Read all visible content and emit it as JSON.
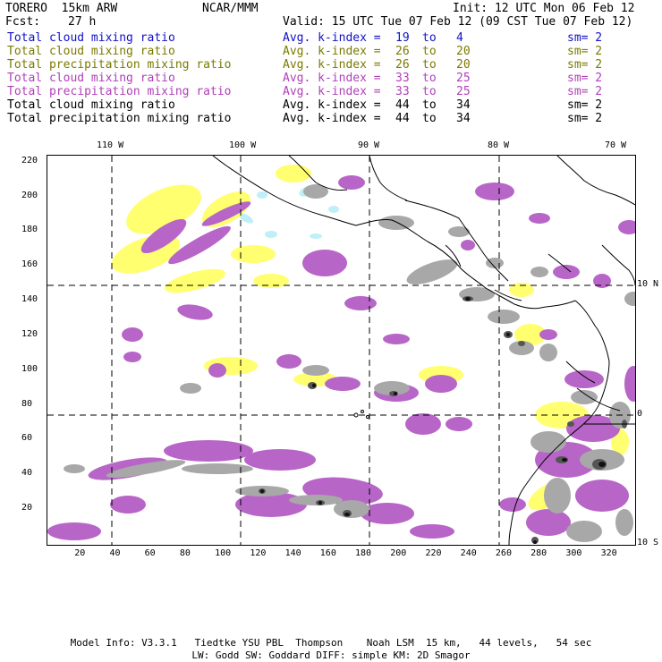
{
  "header": {
    "model_name": "TORERO  15km ARW",
    "center": "NCAR/MMM",
    "init": "Init: 12 UTC Mon 06 Feb 12",
    "fcst_label": "Fcst:",
    "fcst_value": "27 h",
    "valid": "Valid: 15 UTC Tue 07 Feb 12 (09 CST Tue 07 Feb 12)"
  },
  "legend": [
    {
      "field": "Total cloud mixing ratio",
      "index_label": "Avg. k-index =",
      "from": "19",
      "to_word": "to",
      "to": "4",
      "sm": "sm= 2",
      "color": "#1010c8"
    },
    {
      "field": "Total cloud mixing ratio",
      "index_label": "Avg. k-index =",
      "from": "26",
      "to_word": "to",
      "to": "20",
      "sm": "sm= 2",
      "color": "#7a7a00"
    },
    {
      "field": "Total precipitation mixing ratio",
      "index_label": "Avg. k-index =",
      "from": "26",
      "to_word": "to",
      "to": "20",
      "sm": "sm= 2",
      "color": "#7a7a00"
    },
    {
      "field": "Total cloud mixing ratio",
      "index_label": "Avg. k-index =",
      "from": "33",
      "to_word": "to",
      "to": "25",
      "sm": "sm= 2",
      "color": "#b040b8"
    },
    {
      "field": "Total precipitation mixing ratio",
      "index_label": "Avg. k-index =",
      "from": "33",
      "to_word": "to",
      "to": "25",
      "sm": "sm= 2",
      "color": "#b040b8"
    },
    {
      "field": "Total cloud mixing ratio",
      "index_label": "Avg. k-index =",
      "from": "44",
      "to_word": "to",
      "to": "34",
      "sm": "sm= 2",
      "color": "#000000"
    },
    {
      "field": "Total precipitation mixing ratio",
      "index_label": "Avg. k-index =",
      "from": "44",
      "to_word": "to",
      "to": "34",
      "sm": "sm= 2",
      "color": "#000000"
    }
  ],
  "map": {
    "lon_labels": [
      "110 W",
      "100 W",
      "90 W",
      "80 W",
      "70 W"
    ],
    "lat_labels": [
      "10 N",
      "0",
      "10 S"
    ],
    "x_ticks": [
      "20",
      "40",
      "60",
      "80",
      "100",
      "120",
      "140",
      "160",
      "180",
      "200",
      "220",
      "240",
      "260",
      "280",
      "300",
      "320"
    ],
    "y_ticks": [
      "220",
      "200",
      "180",
      "160",
      "140",
      "120",
      "100",
      "80",
      "60",
      "40",
      "20"
    ],
    "colors": {
      "light_blue": "#bfeff8",
      "yellow": "#ffff70",
      "purple": "#b865c8",
      "gray": "#a8a8a8",
      "dark_gray": "#555555",
      "black": "#111111",
      "coast": "#000000"
    }
  },
  "footer": {
    "line1": "Model Info: V3.3.1   Tiedtke YSU PBL  Thompson    Noah LSM  15 km,   44 levels,   54 sec",
    "line2": "LW: Godd SW: Goddard DIFF: simple KM: 2D Smagor"
  }
}
